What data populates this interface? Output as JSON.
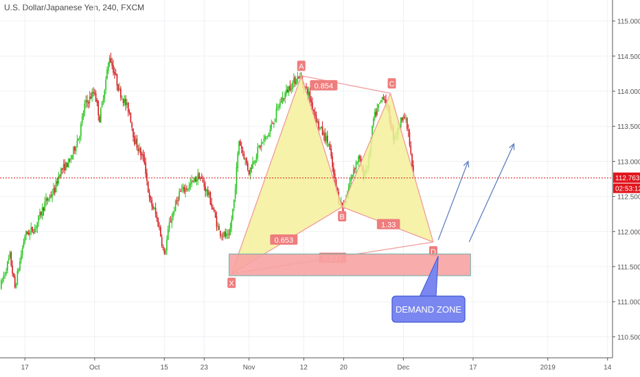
{
  "title": "U.S. Dollar/Japanese Yen, 240, FXCM",
  "colors": {
    "up": "#22c31a",
    "down": "#d2181c",
    "grid": "#eef0f3",
    "axis_text": "#555555",
    "pattern_fill": "#f4f09a",
    "pattern_stroke": "#f19a9a",
    "label_bg": "#ef7d7d",
    "zone_fill": "#f7a3a3",
    "zone_stroke": "#6ab0a8",
    "arrow": "#5f7fbf",
    "callout_bg": "#7a87f0",
    "callout_border": "#3f55d6",
    "price_line": "#d2181c",
    "price_tag": "#e1161e"
  },
  "chart_data": {
    "type": "candlestick",
    "ylim": [
      110.2,
      115.3
    ],
    "xlim": [
      0,
      123
    ],
    "y_ticks": [
      "115.000",
      "114.500",
      "114.000",
      "113.500",
      "113.000",
      "112.500",
      "112.000",
      "111.500",
      "111.000",
      "110.500"
    ],
    "y_tick_values": [
      115.0,
      114.5,
      114.0,
      113.5,
      113.0,
      112.5,
      112.0,
      111.5,
      111.0,
      110.5
    ],
    "x_tick_labels": [
      "17",
      "Oct",
      "15",
      "23",
      "Nov",
      "12",
      "20",
      "Dec",
      "17",
      "2019",
      "14"
    ],
    "x_tick_positions": [
      5,
      19,
      33,
      41,
      50,
      61,
      69,
      81,
      95,
      110,
      122
    ],
    "anchors": [
      [
        0,
        111.2
      ],
      [
        2,
        111.65
      ],
      [
        3,
        111.2
      ],
      [
        5,
        111.95
      ],
      [
        7,
        112.05
      ],
      [
        9,
        112.4
      ],
      [
        11,
        112.6
      ],
      [
        12,
        112.85
      ],
      [
        14,
        113.0
      ],
      [
        16,
        113.4
      ],
      [
        17,
        113.8
      ],
      [
        19,
        114.0
      ],
      [
        20,
        113.6
      ],
      [
        22,
        114.5
      ],
      [
        24,
        114.0
      ],
      [
        26,
        113.7
      ],
      [
        27,
        113.3
      ],
      [
        29,
        113.0
      ],
      [
        30,
        112.45
      ],
      [
        31,
        112.3
      ],
      [
        32,
        112.05
      ],
      [
        33,
        111.65
      ],
      [
        34,
        112.1
      ],
      [
        36,
        112.55
      ],
      [
        38,
        112.65
      ],
      [
        40,
        112.8
      ],
      [
        42,
        112.5
      ],
      [
        44,
        112.0
      ],
      [
        46,
        111.9
      ],
      [
        47,
        112.45
      ],
      [
        48,
        113.3
      ],
      [
        50,
        112.85
      ],
      [
        52,
        113.2
      ],
      [
        54,
        113.4
      ],
      [
        56,
        113.8
      ],
      [
        58,
        114.05
      ],
      [
        60,
        114.22
      ],
      [
        62,
        113.95
      ],
      [
        64,
        113.5
      ],
      [
        66,
        113.25
      ],
      [
        67,
        112.8
      ],
      [
        68,
        112.45
      ],
      [
        69,
        112.35
      ],
      [
        71,
        112.9
      ],
      [
        72,
        113.05
      ],
      [
        73,
        112.8
      ],
      [
        74,
        113.0
      ],
      [
        75,
        113.6
      ],
      [
        77,
        113.95
      ],
      [
        78,
        113.7
      ],
      [
        79,
        113.35
      ],
      [
        80,
        113.45
      ],
      [
        81,
        113.7
      ],
      [
        82,
        113.4
      ],
      [
        83,
        112.76
      ]
    ],
    "pattern": {
      "points": {
        "X": [
          46.5,
          111.4
        ],
        "A": [
          60.5,
          114.22
        ],
        "B": [
          68.7,
          112.35
        ],
        "C": [
          78.4,
          113.97
        ],
        "D": [
          87,
          111.85
        ]
      },
      "labels": [
        "X",
        "A",
        "B",
        "C",
        "D"
      ],
      "ratios": [
        {
          "text": "0.854",
          "at": [
            65,
            114.08
          ]
        },
        {
          "text": "0.653",
          "at": [
            57,
            111.88
          ]
        },
        {
          "text": "1.33",
          "at": [
            78,
            112.1
          ]
        },
        {
          "text": "0.837",
          "at": [
            66.8,
            111.62
          ]
        }
      ]
    },
    "demand_zone": {
      "x": [
        46,
        94.5
      ],
      "y": [
        111.37,
        111.68
      ]
    },
    "arrows": [
      {
        "from": [
          88,
          111.88
        ],
        "to": [
          94,
          113.0
        ]
      },
      {
        "from": [
          94.2,
          111.85
        ],
        "to": [
          103.2,
          113.25
        ]
      }
    ],
    "current_price": 112.763,
    "current_price_label": "112.763",
    "countdown_label": "02:53:12",
    "callout": {
      "text": "DEMAND ZONE",
      "anchor": [
        88,
        111.65
      ]
    }
  }
}
